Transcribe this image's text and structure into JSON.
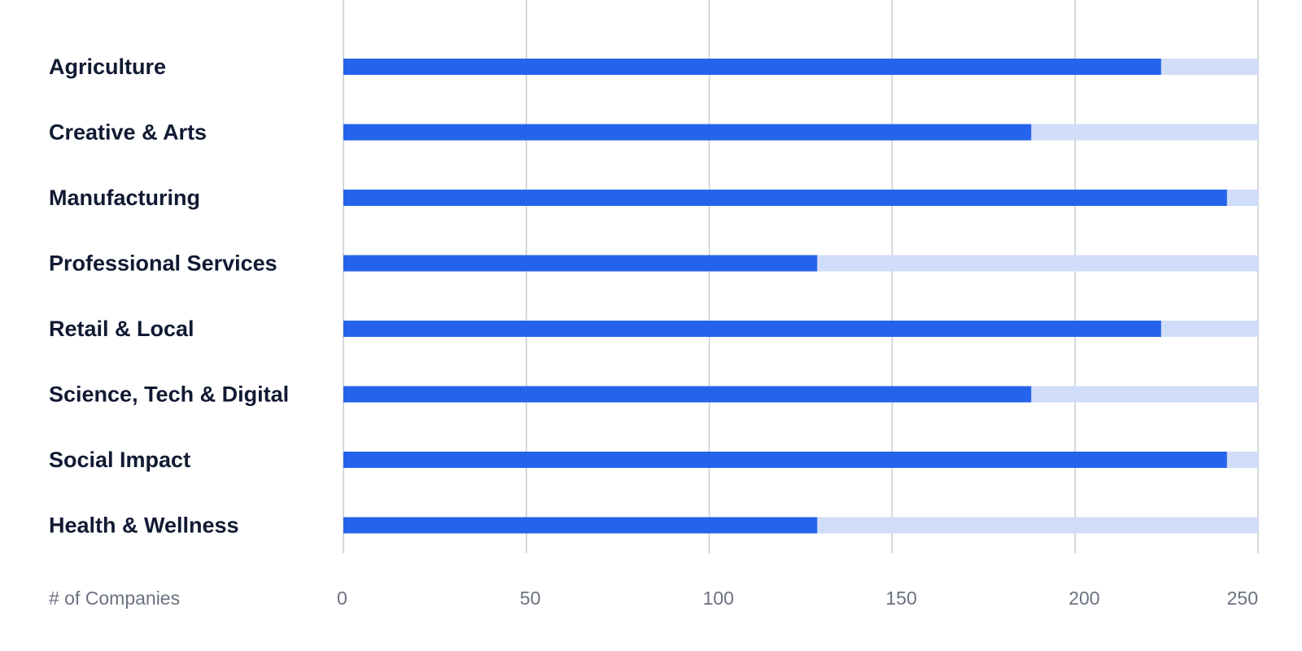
{
  "chart_data": {
    "type": "bar",
    "orientation": "horizontal",
    "categories": [
      "Agriculture",
      "Creative & Arts",
      "Manufacturing",
      "Professional Services",
      "Retail & Local",
      "Science, Tech & Digital",
      "Social Impact",
      "Health & Wellness"
    ],
    "values": [
      223.5,
      188,
      241.5,
      129.5,
      223.5,
      188,
      241.5,
      129.5
    ],
    "xlabel": "# of Companies",
    "xlim": [
      0,
      250
    ],
    "xticks": [
      0,
      50,
      100,
      150,
      200,
      250
    ],
    "track_max": 250,
    "grid": true,
    "colors": {
      "bar": "#2563eb",
      "track": "#d0ddf9",
      "grid": "#c8ccd3",
      "label": "#111a33",
      "tick": "#6b7280"
    }
  }
}
